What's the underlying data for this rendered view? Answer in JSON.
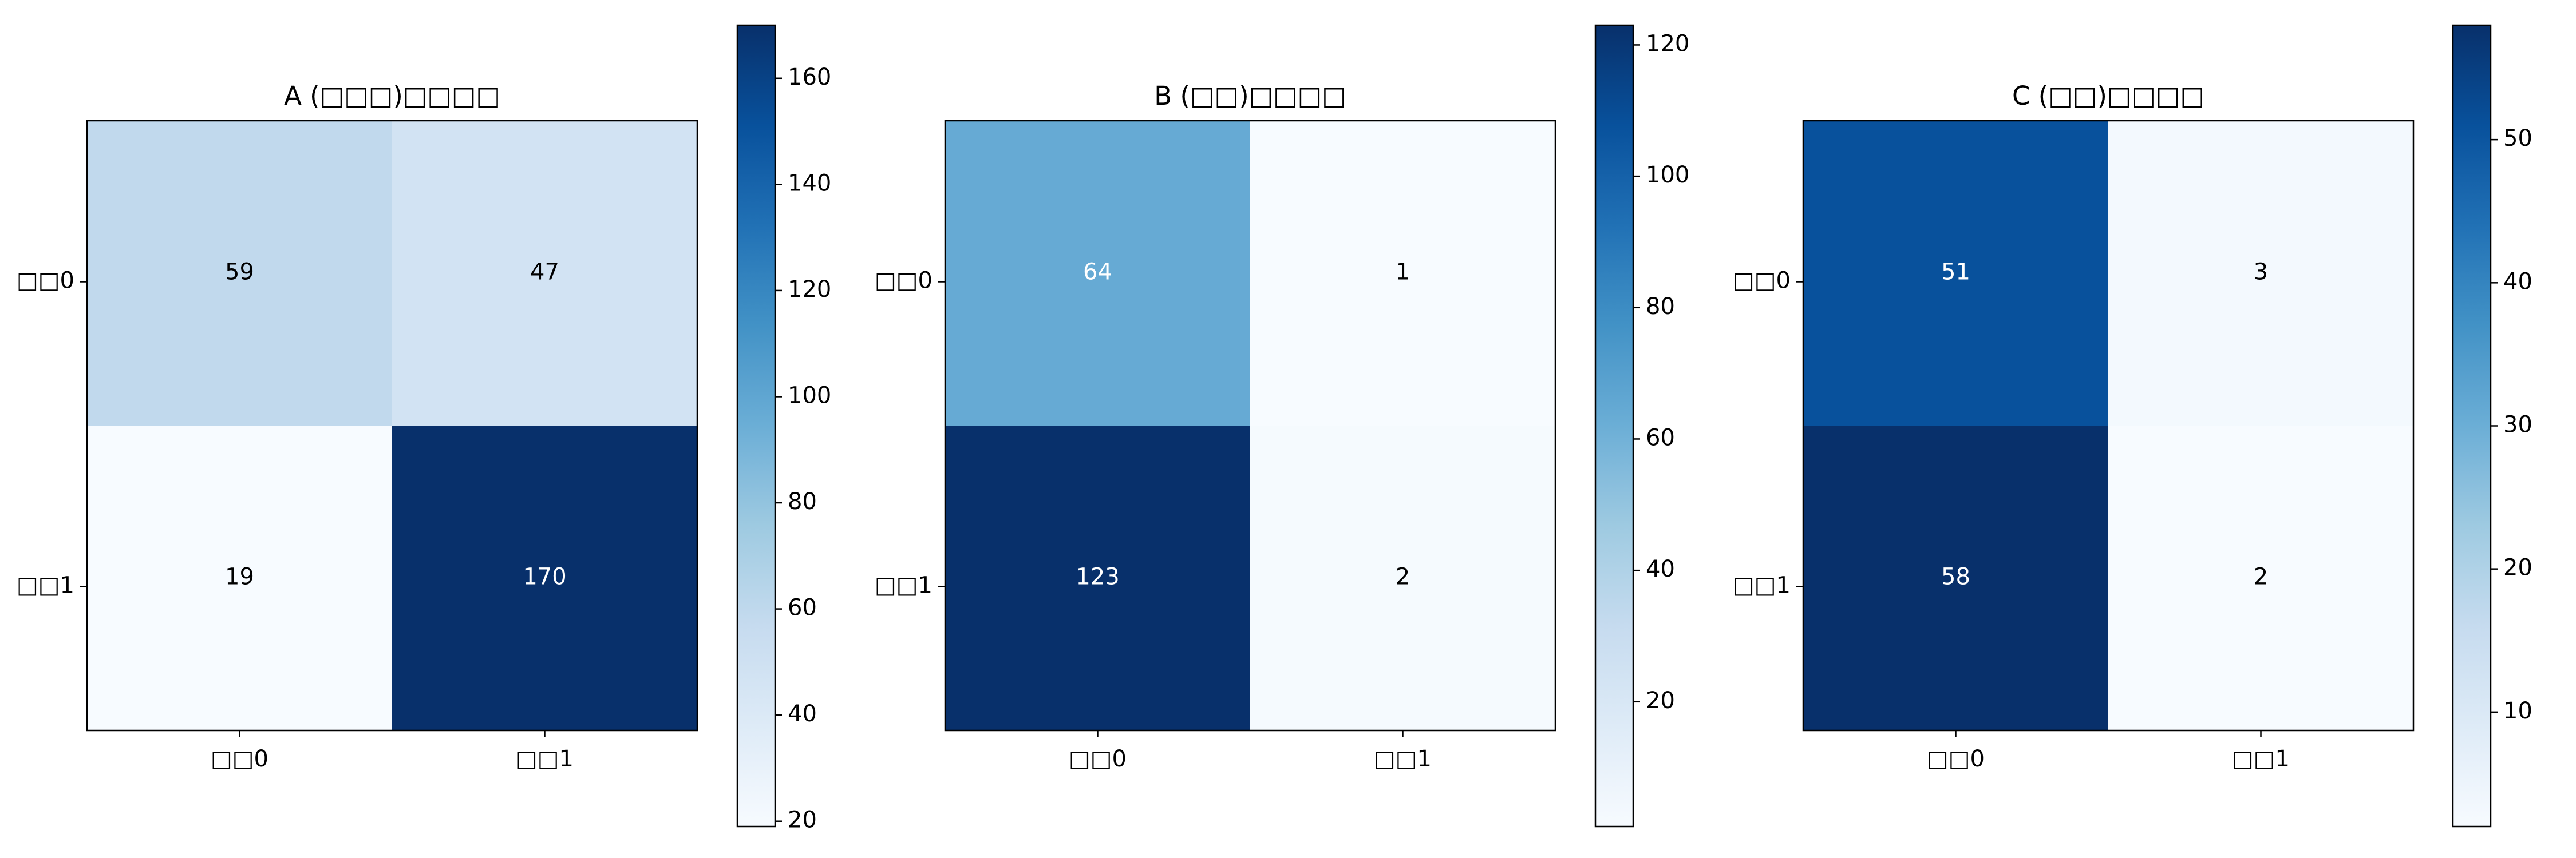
{
  "chart_data": [
    {
      "type": "heatmap",
      "title": "A (□□□)□□□□",
      "x_categories": [
        "□□0",
        "□□1"
      ],
      "y_categories": [
        "□□0",
        "□□1"
      ],
      "values": [
        [
          59,
          47
        ],
        [
          19,
          170
        ]
      ],
      "colormap": "Blues",
      "colorbar_range": [
        19,
        170
      ],
      "colorbar_ticks": [
        20,
        40,
        60,
        80,
        100,
        120,
        140,
        160
      ]
    },
    {
      "type": "heatmap",
      "title": "B (□□)□□□□",
      "x_categories": [
        "□□0",
        "□□1"
      ],
      "y_categories": [
        "□□0",
        "□□1"
      ],
      "values": [
        [
          64,
          1
        ],
        [
          123,
          2
        ]
      ],
      "colormap": "Blues",
      "colorbar_range": [
        1,
        123
      ],
      "colorbar_ticks": [
        20,
        40,
        60,
        80,
        100,
        120
      ]
    },
    {
      "type": "heatmap",
      "title": "C (□□)□□□□",
      "x_categories": [
        "□□0",
        "□□1"
      ],
      "y_categories": [
        "□□0",
        "□□1"
      ],
      "values": [
        [
          51,
          3
        ],
        [
          58,
          2
        ]
      ],
      "colormap": "Blues",
      "colorbar_range": [
        2,
        58
      ],
      "colorbar_ticks": [
        10,
        20,
        30,
        40,
        50
      ]
    }
  ]
}
